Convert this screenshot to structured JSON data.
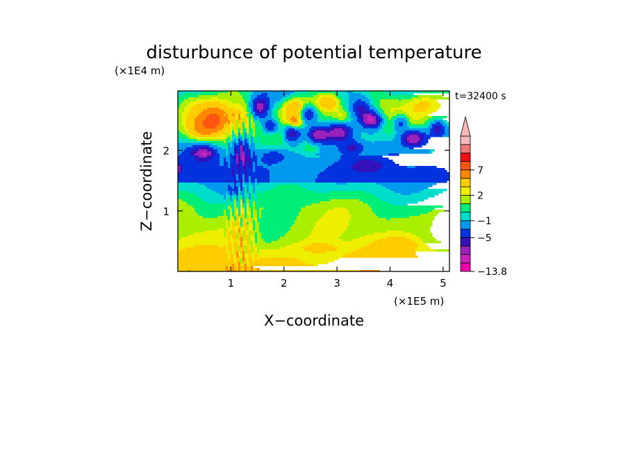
{
  "chart_data": {
    "type": "heatmap",
    "title": "disturbunce of potential temperature",
    "time_label": "t=32400 s",
    "xlabel": "X−coordinate",
    "ylabel": "Z−coordinate",
    "x_unit": "(×1E5 m)",
    "y_unit": "(×1E4 m)",
    "xlim": [
      0,
      5.12
    ],
    "ylim": [
      0,
      2.98
    ],
    "x_ticks": [
      1,
      2,
      3,
      4,
      5
    ],
    "x_tick_labels": [
      "1",
      "2",
      "3",
      "4",
      "5"
    ],
    "y_ticks": [
      1,
      2
    ],
    "y_tick_labels": [
      "1",
      "2"
    ],
    "colorbar": {
      "levels": [
        -13.8,
        -11,
        -9,
        -7,
        -5,
        -3,
        -1,
        0,
        1,
        2,
        3,
        5,
        7,
        9,
        11
      ],
      "colors": [
        "#ee00aa",
        "#cc22bb",
        "#9922bb",
        "#3311bb",
        "#0033dd",
        "#0099ee",
        "#00ddcc",
        "#00ee77",
        "#aaee00",
        "#eeee00",
        "#ffcc00",
        "#ff8800",
        "#ff5511",
        "#ee1111",
        "#ee7777",
        "#f5b8b8"
      ],
      "tick_labels": [
        "7",
        "2",
        "−1",
        "−5",
        "−13.8"
      ],
      "tick_values": [
        7,
        2,
        -1,
        -5,
        -13.8
      ],
      "extend": "max"
    },
    "colors": {
      "frame": "#000000"
    }
  }
}
